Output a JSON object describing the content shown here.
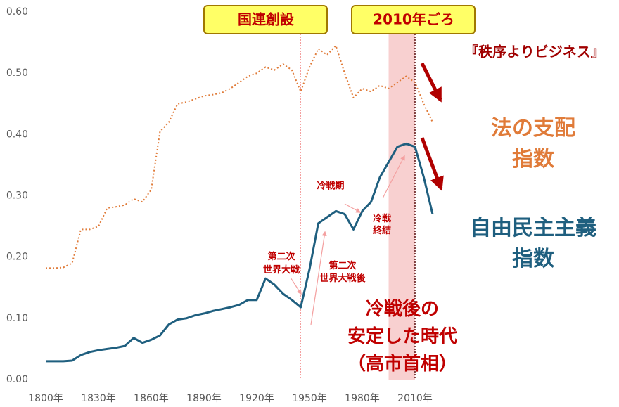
{
  "chart_data": {
    "type": "line",
    "x": [
      1800,
      1805,
      1810,
      1815,
      1820,
      1825,
      1830,
      1835,
      1840,
      1845,
      1850,
      1855,
      1860,
      1865,
      1870,
      1875,
      1880,
      1885,
      1890,
      1895,
      1900,
      1905,
      1910,
      1915,
      1920,
      1925,
      1930,
      1935,
      1940,
      1945,
      1950,
      1955,
      1960,
      1965,
      1970,
      1975,
      1980,
      1985,
      1990,
      1995,
      2000,
      2005,
      2010,
      2015,
      2020
    ],
    "series": [
      {
        "name": "法の支配\n指数",
        "color": "#E07B39",
        "dash": true,
        "values": [
          0.182,
          0.182,
          0.183,
          0.19,
          0.245,
          0.245,
          0.25,
          0.28,
          0.282,
          0.285,
          0.295,
          0.29,
          0.31,
          0.405,
          0.42,
          0.45,
          0.453,
          0.458,
          0.463,
          0.465,
          0.468,
          0.475,
          0.485,
          0.495,
          0.5,
          0.51,
          0.505,
          0.515,
          0.505,
          0.47,
          0.51,
          0.54,
          0.53,
          0.545,
          0.5,
          0.46,
          0.475,
          0.47,
          0.48,
          0.475,
          0.485,
          0.495,
          0.485,
          0.45,
          0.42
        ]
      },
      {
        "name": "自由民主主義\n指数",
        "color": "#1F5F7F",
        "dash": false,
        "values": [
          0.03,
          0.03,
          0.03,
          0.031,
          0.04,
          0.045,
          0.048,
          0.05,
          0.052,
          0.055,
          0.068,
          0.06,
          0.065,
          0.072,
          0.09,
          0.098,
          0.1,
          0.105,
          0.108,
          0.112,
          0.115,
          0.118,
          0.122,
          0.13,
          0.13,
          0.165,
          0.155,
          0.14,
          0.13,
          0.118,
          0.18,
          0.255,
          0.265,
          0.275,
          0.27,
          0.245,
          0.275,
          0.29,
          0.33,
          0.355,
          0.38,
          0.385,
          0.38,
          0.33,
          0.27
        ]
      }
    ],
    "xlim": [
      1790,
      2060
    ],
    "ylim": [
      0,
      0.6
    ],
    "xticks": [
      {
        "value": 1800,
        "label": "1800年"
      },
      {
        "value": 1830,
        "label": "1830年"
      },
      {
        "value": 1860,
        "label": "1860年"
      },
      {
        "value": 1890,
        "label": "1890年"
      },
      {
        "value": 1920,
        "label": "1920年"
      },
      {
        "value": 1950,
        "label": "1950年"
      },
      {
        "value": 1980,
        "label": "1980年"
      },
      {
        "value": 2010,
        "label": "2010年"
      }
    ],
    "yticks": [
      {
        "value": 0,
        "label": "0.00"
      },
      {
        "value": 0.1,
        "label": "0.10"
      },
      {
        "value": 0.2,
        "label": "0.20"
      },
      {
        "value": 0.3,
        "label": "0.30"
      },
      {
        "value": 0.4,
        "label": "0.40"
      },
      {
        "value": 0.5,
        "label": "0.50"
      },
      {
        "value": 0.6,
        "label": "0.60"
      }
    ],
    "highlight": [
      1995,
      2010
    ],
    "vlines": [
      1945,
      2010
    ],
    "annotations": {
      "un": "国連創設",
      "around2010": "2010年ごろ",
      "business": "『秩序よりビジネス』",
      "ww2": "第二次\n世界大戦",
      "coldwar": "冷戦期",
      "coldwar_end": "冷戦\n終結",
      "postwar": "第二次\n世界大戦後",
      "stable": "冷戦後の\n安定した時代\n（高市首相）"
    }
  }
}
